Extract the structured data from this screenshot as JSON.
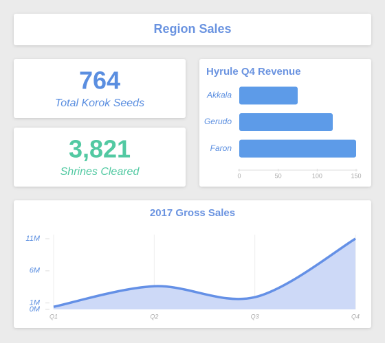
{
  "header": {
    "title": "Region Sales"
  },
  "kpis": [
    {
      "value": "764",
      "label": "Total Korok Seeds"
    },
    {
      "value": "3,821",
      "label": "Shrines Cleared"
    }
  ],
  "chart_data": [
    {
      "type": "hbar",
      "title": "Hyrule Q4 Revenue",
      "categories": [
        "Akkala",
        "Gerudo",
        "Faron"
      ],
      "values": [
        75,
        120,
        150
      ],
      "color": "#5d9be8",
      "xlim": [
        0,
        150
      ],
      "xticks": [
        0,
        50,
        100,
        150
      ]
    },
    {
      "type": "area",
      "title": "2017 Gross Sales",
      "categories": [
        "Q1",
        "Q2",
        "Q3",
        "Q4"
      ],
      "values": [
        400000,
        3600000,
        1900000,
        11000000
      ],
      "color": "#6490e6",
      "fill": "#cdd9f7",
      "ylim": [
        0,
        11000000
      ],
      "yticks": [
        {
          "value": 0,
          "label": "0M"
        },
        {
          "value": 1000000,
          "label": "1M"
        },
        {
          "value": 6000000,
          "label": "6M"
        },
        {
          "value": 11000000,
          "label": "11M"
        }
      ],
      "grid": true
    }
  ]
}
